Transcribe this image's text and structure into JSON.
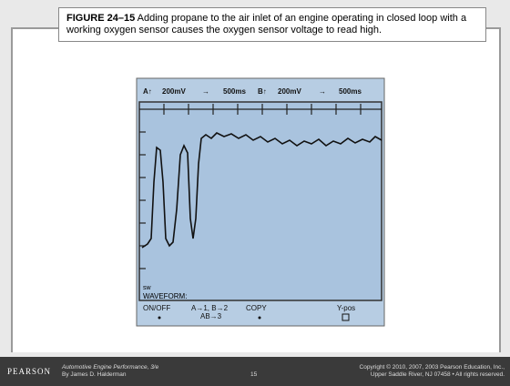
{
  "caption": {
    "label": "FIGURE 24–15",
    "text": "Adding propane to the air inlet of an engine operating in closed loop with a working oxygen sensor causes the oxygen sensor voltage to read high."
  },
  "scope": {
    "header": [
      "A↑",
      "200mV",
      "→",
      "500ms",
      "B↑",
      "200mV",
      "→",
      "500ms"
    ],
    "marker": "sw",
    "waveform": "WAVEFORM:",
    "buttons": [
      "ON/OFF",
      "A→1, B→2",
      "AB→3",
      "COPY",
      "Y-pos"
    ]
  },
  "footer": {
    "brand": "PEARSON",
    "book": "Automotive Engine Performance, 3/e",
    "author": "By James D. Halderman",
    "page": "15",
    "copyright1": "Copyright © 2010, 2007, 2003 Pearson Education, Inc.,",
    "copyright2": "Upper Saddle River, NJ 07458 • All rights reserved."
  }
}
